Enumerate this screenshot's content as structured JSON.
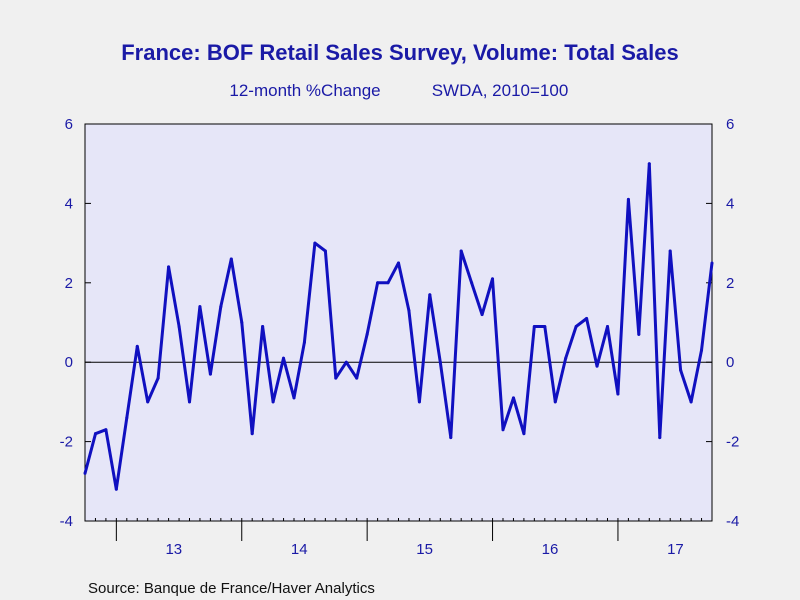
{
  "chart_data": {
    "type": "line",
    "title": "France: BOF Retail Sales Survey, Volume: Total Sales",
    "subtitle_left": "12-month %Change",
    "subtitle_right": "SWDA, 2010=100",
    "source": "Source:  Banque de France/Haver Analytics",
    "x_tick_labels": [
      "13",
      "14",
      "15",
      "16",
      "17"
    ],
    "y_ticks": [
      6,
      4,
      2,
      0,
      -2,
      -4
    ],
    "ylim": [
      -4,
      6
    ],
    "x_start": "2012-10",
    "grid": false,
    "zero_line": true,
    "series": [
      {
        "color": "#1010c0",
        "values": [
          -2.8,
          -1.8,
          -1.7,
          -3.2,
          -1.4,
          0.4,
          -1.0,
          -0.4,
          2.4,
          0.9,
          -1.0,
          1.4,
          -0.3,
          1.4,
          2.6,
          1.0,
          -1.8,
          0.9,
          -1.0,
          0.1,
          -0.9,
          0.5,
          3.0,
          2.8,
          -0.4,
          0.0,
          -0.4,
          0.7,
          2.0,
          2.0,
          2.5,
          1.3,
          -1.0,
          1.7,
          0.0,
          -1.9,
          2.8,
          2.0,
          1.2,
          2.1,
          -1.7,
          -0.9,
          -1.8,
          0.9,
          0.9,
          -1.0,
          0.1,
          0.9,
          1.1,
          -0.1,
          0.9,
          -0.8,
          4.1,
          0.7,
          5.0,
          -1.9,
          2.8,
          -0.2,
          -1.0,
          0.3,
          2.5
        ]
      }
    ]
  }
}
